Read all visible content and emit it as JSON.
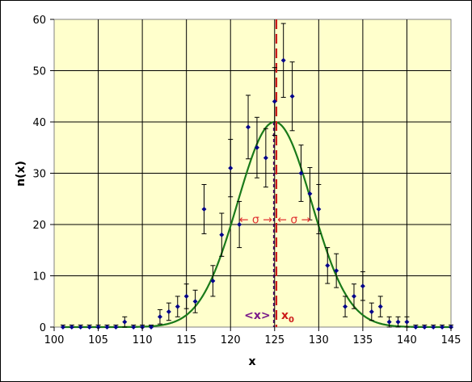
{
  "chart_data": {
    "type": "scatter",
    "title": "",
    "xlabel": "x",
    "ylabel": "n(x)",
    "xlim": [
      100,
      145
    ],
    "ylim": [
      0,
      60
    ],
    "xticks": [
      "100",
      "105",
      "110",
      "115",
      "120",
      "125",
      "130",
      "135",
      "140",
      "145"
    ],
    "yticks": [
      "0",
      "10",
      "20",
      "30",
      "40",
      "50",
      "60"
    ],
    "grid": true,
    "plot_background": "#ffffcc",
    "point_color": "#00008b",
    "curve_color": "#1a7a1a",
    "series": [
      {
        "type": "scatter_with_error_bars",
        "x": [
          101,
          102,
          103,
          104,
          105,
          106,
          107,
          108,
          109,
          110,
          111,
          112,
          113,
          114,
          115,
          116,
          117,
          118,
          119,
          120,
          121,
          122,
          123,
          124,
          125,
          126,
          127,
          128,
          129,
          130,
          131,
          132,
          133,
          134,
          135,
          136,
          137,
          138,
          139,
          140,
          141,
          142,
          143,
          144,
          145
        ],
        "y": [
          0,
          0,
          0,
          0,
          0,
          0,
          0,
          1,
          0,
          0,
          0,
          2,
          3,
          4,
          6,
          5,
          23,
          9,
          18,
          31,
          20,
          39,
          35,
          33,
          44,
          52,
          45,
          30,
          26,
          23,
          12,
          11,
          4,
          6,
          8,
          3,
          4,
          1,
          1,
          1,
          0,
          0,
          0,
          0,
          0
        ],
        "err": [
          0.4,
          0.4,
          0.4,
          0.4,
          0.4,
          0.4,
          0.4,
          1.0,
          0.4,
          0.4,
          0.4,
          1.4,
          1.7,
          2.0,
          2.4,
          2.2,
          4.8,
          3.0,
          4.2,
          5.6,
          4.5,
          6.2,
          5.9,
          5.7,
          6.6,
          7.2,
          6.7,
          5.5,
          5.1,
          4.8,
          3.5,
          3.3,
          2.0,
          2.4,
          2.8,
          1.7,
          2.0,
          1.0,
          1.0,
          1.0,
          0.4,
          0.4,
          0.4,
          0.4,
          0.4
        ]
      },
      {
        "type": "gaussian_curve",
        "amplitude": 40,
        "mean": 125,
        "sigma": 4.2
      }
    ],
    "annotations": {
      "sigma_left": "← σ →",
      "sigma_right": "← σ →",
      "mean_label": "<x>",
      "x0_label_main": "x",
      "x0_label_sub": "0",
      "x0_line_at": 125.2,
      "mean_line_at": 124.9,
      "sigma_arrow_y": 21,
      "x0_line_color": "#cc1a1a",
      "mean_line_color": "#4b0a6a"
    }
  }
}
